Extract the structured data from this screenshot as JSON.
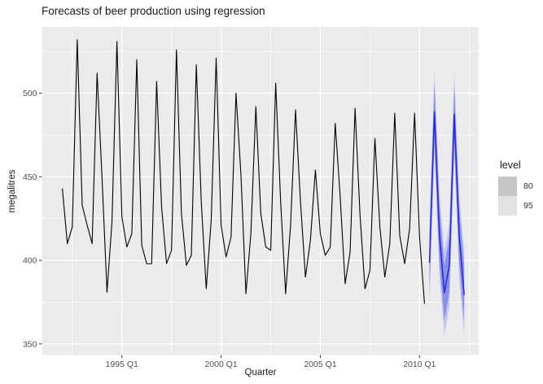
{
  "title": "Forecasts of beer production using regression",
  "axes": {
    "x_label": "Quarter",
    "y_label": "megalitres"
  },
  "legend": {
    "title": "level",
    "items": [
      {
        "label": "80",
        "color": "#c5c5c5"
      },
      {
        "label": "95",
        "color": "#e2e2e2"
      }
    ]
  },
  "colors": {
    "panel_background": "#ebebeb",
    "grid": "#ffffff",
    "observed_line": "#000000",
    "forecast_line": "#2228dc",
    "band80": "#8a8fe9",
    "band95": "#c3c6f2",
    "axis_text": "#4d4d4d",
    "tick_mark": "#333333"
  },
  "chart_data": {
    "type": "line",
    "title": "Forecasts of beer production using regression",
    "xlabel": "Quarter",
    "ylabel": "megalitres",
    "xlim": [
      1990.97,
      2012.98
    ],
    "ylim": [
      343.3,
      539.7
    ],
    "grid": true,
    "legend_position": "right",
    "x_ticks": [
      {
        "t": 1995.0,
        "label": "1995 Q1"
      },
      {
        "t": 2000.0,
        "label": "2000 Q1"
      },
      {
        "t": 2005.0,
        "label": "2005 Q1"
      },
      {
        "t": 2010.0,
        "label": "2010 Q1"
      }
    ],
    "y_ticks": [
      {
        "v": 350,
        "label": "350"
      },
      {
        "v": 400,
        "label": "400"
      },
      {
        "v": 450,
        "label": "450"
      },
      {
        "v": 500,
        "label": "500"
      }
    ],
    "x_minor": [
      1992.5,
      1997.5,
      2002.5,
      2007.5,
      2012.5
    ],
    "y_minor": [
      375,
      425,
      475,
      525
    ],
    "series": [
      {
        "name": "observed",
        "start": 1992.0,
        "step": 0.25,
        "values": [
          443,
          410,
          420,
          532,
          433,
          421,
          410,
          512,
          449,
          381,
          423,
          531,
          426,
          408,
          416,
          520,
          409,
          398,
          398,
          507,
          432,
          398,
          406,
          526,
          428,
          397,
          403,
          517,
          435,
          383,
          424,
          521,
          421,
          402,
          414,
          500,
          451,
          380,
          416,
          492,
          428,
          408,
          406,
          506,
          435,
          380,
          421,
          490,
          435,
          390,
          412,
          454,
          416,
          403,
          408,
          482,
          438,
          386,
          405,
          491,
          427,
          383,
          394,
          473,
          420,
          390,
          410,
          488,
          415,
          398,
          419,
          488,
          414,
          374
        ]
      },
      {
        "name": "forecast",
        "x": [
          2010.5,
          2010.75,
          2011.0,
          2011.25,
          2011.5,
          2011.75,
          2012.0,
          2012.25
        ],
        "mean": [
          398.5,
          488.8,
          415.6,
          380.6,
          397.1,
          487.4,
          414.3,
          379.3
        ],
        "lo80": [
          382.1,
          472.4,
          399.2,
          364.2,
          380.7,
          471.0,
          397.9,
          362.9
        ],
        "hi80": [
          414.9,
          505.2,
          432.0,
          397.0,
          413.5,
          503.8,
          430.7,
          395.7
        ],
        "lo95": [
          373.4,
          463.7,
          390.5,
          355.5,
          372.0,
          462.3,
          389.2,
          354.2
        ],
        "hi95": [
          423.6,
          513.9,
          440.7,
          405.7,
          422.2,
          512.5,
          439.4,
          404.4
        ]
      }
    ]
  }
}
